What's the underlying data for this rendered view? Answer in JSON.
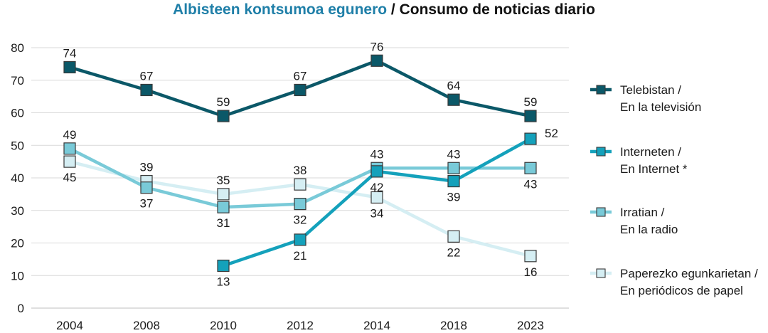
{
  "title": {
    "part1": "Albisteen kontsumoa egunero",
    "part2": " / Consumo de noticias diario"
  },
  "chart_data": {
    "type": "line",
    "title": "Albisteen kontsumoa egunero / Consumo de noticias diario",
    "categories": [
      "2004",
      "2008",
      "2010",
      "2012",
      "2014",
      "2018",
      "2023"
    ],
    "ylim": [
      0,
      80
    ],
    "yticks": [
      0,
      10,
      20,
      30,
      40,
      50,
      60,
      70,
      80
    ],
    "grid": true,
    "legend_position": "right",
    "series": [
      {
        "key": "tv",
        "name": [
          "Telebistan /",
          "En la televisión"
        ],
        "color": "#0b5868",
        "values": [
          74,
          67,
          59,
          67,
          76,
          64,
          59
        ]
      },
      {
        "key": "internet",
        "name": [
          "Interneten /",
          "En Internet *"
        ],
        "color": "#14a1bb",
        "values": [
          null,
          null,
          13,
          21,
          42,
          39,
          52
        ]
      },
      {
        "key": "radio",
        "name": [
          "Irratian /",
          "En la radio"
        ],
        "color": "#79cad8",
        "values": [
          49,
          37,
          31,
          32,
          43,
          43,
          43
        ]
      },
      {
        "key": "paper",
        "name": [
          "Paperezko egunkarietan /",
          "En periódicos de papel"
        ],
        "color": "#d5eef3",
        "values": [
          45,
          39,
          35,
          38,
          34,
          22,
          16
        ]
      }
    ]
  }
}
